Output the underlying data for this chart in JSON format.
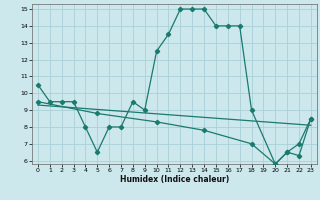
{
  "xlabel": "Humidex (Indice chaleur)",
  "bg_color": "#cce8ec",
  "grid_color": "#aad0d8",
  "line_color": "#1a7a6e",
  "xlim": [
    -0.5,
    23.5
  ],
  "ylim": [
    5.8,
    15.3
  ],
  "xticks": [
    0,
    1,
    2,
    3,
    4,
    5,
    6,
    7,
    8,
    9,
    10,
    11,
    12,
    13,
    14,
    15,
    16,
    17,
    18,
    19,
    20,
    21,
    22,
    23
  ],
  "yticks": [
    6,
    7,
    8,
    9,
    10,
    11,
    12,
    13,
    14,
    15
  ],
  "line1_x": [
    0,
    1,
    2,
    3,
    4,
    5,
    6,
    7,
    8,
    9,
    10,
    11,
    12,
    13,
    14,
    15,
    16,
    17,
    18,
    20,
    21,
    22,
    23
  ],
  "line1_y": [
    10.5,
    9.5,
    9.5,
    9.5,
    8.0,
    6.5,
    8.0,
    8.0,
    9.5,
    9.0,
    12.5,
    13.5,
    15.0,
    15.0,
    15.0,
    14.0,
    14.0,
    14.0,
    9.0,
    5.8,
    6.5,
    7.0,
    8.5
  ],
  "line2_x": [
    0,
    23
  ],
  "line2_y": [
    9.3,
    8.1
  ],
  "line3_x": [
    0,
    5,
    10,
    14,
    18,
    20,
    21,
    22,
    23
  ],
  "line3_y": [
    9.5,
    8.8,
    8.3,
    7.8,
    7.0,
    5.8,
    6.5,
    6.3,
    8.5
  ]
}
